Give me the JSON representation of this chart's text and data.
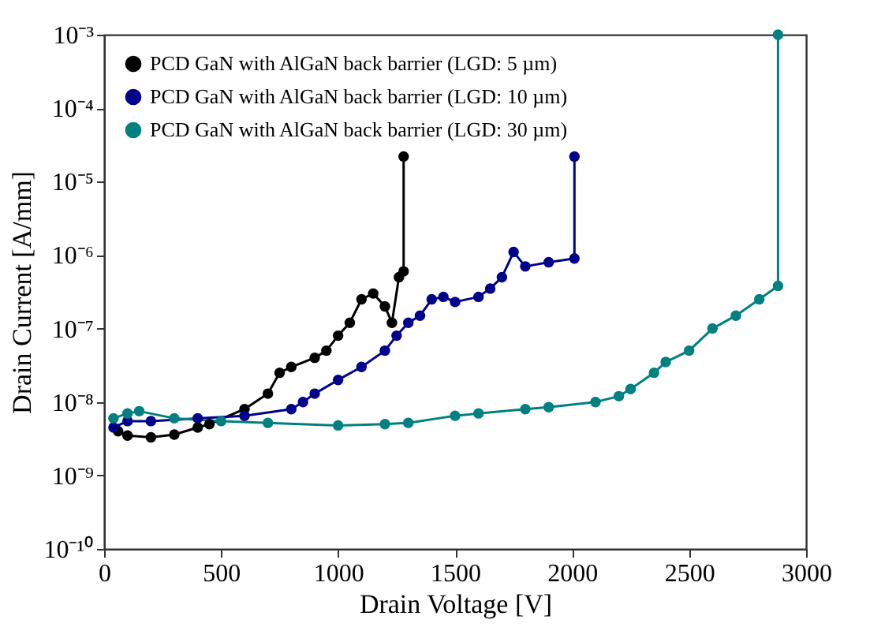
{
  "chart_data": {
    "type": "line",
    "xlabel": "Drain Voltage [V]",
    "ylabel": "Drain Current [A/mm]",
    "xlim": [
      0,
      3000
    ],
    "xticks": [
      0,
      500,
      1000,
      1500,
      2000,
      2500,
      3000
    ],
    "ylim": [
      1e-10,
      0.001
    ],
    "log": "y",
    "yticks": [
      {
        "value": 1e-10,
        "label": "10⁻¹⁰"
      },
      {
        "value": 1e-09,
        "label": "10⁻⁹"
      },
      {
        "value": 1e-08,
        "label": "10⁻⁸"
      },
      {
        "value": 1e-07,
        "label": "10⁻⁷"
      },
      {
        "value": 1e-06,
        "label": "10⁻⁶"
      },
      {
        "value": 1e-05,
        "label": "10⁻⁵"
      },
      {
        "value": 0.0001,
        "label": "10⁻⁴"
      },
      {
        "value": 0.001,
        "label": "10⁻³"
      }
    ],
    "grid": false,
    "legend": "top left",
    "marker": "circle",
    "line_style": "solid",
    "series": [
      {
        "name": "PCD GaN with AlGaN back barrier (LGD: 5 µm)",
        "color": "#000000",
        "x": [
          60,
          100,
          200,
          300,
          400,
          450,
          600,
          700,
          750,
          800,
          900,
          950,
          1000,
          1050,
          1100,
          1150,
          1200,
          1230,
          1260,
          1280,
          1280
        ],
        "values": [
          4e-09,
          3.5e-09,
          3.3e-09,
          3.6e-09,
          4.5e-09,
          5e-09,
          8e-09,
          1.3e-08,
          2.5e-08,
          3e-08,
          4e-08,
          5e-08,
          8e-08,
          1.2e-07,
          2.5e-07,
          3e-07,
          2e-07,
          1.2e-07,
          5e-07,
          6e-07,
          2.2e-05
        ]
      },
      {
        "name": "PCD GaN with AlGaN back barrier (LGD: 10 µm)",
        "color": "#00008b",
        "x": [
          40,
          100,
          200,
          400,
          600,
          800,
          850,
          900,
          1000,
          1100,
          1200,
          1250,
          1300,
          1350,
          1400,
          1450,
          1500,
          1600,
          1650,
          1700,
          1750,
          1800,
          1900,
          2010,
          2010
        ],
        "values": [
          4.5e-09,
          5.5e-09,
          5.5e-09,
          6e-09,
          6.5e-09,
          8e-09,
          1e-08,
          1.3e-08,
          2e-08,
          3e-08,
          5e-08,
          8e-08,
          1.2e-07,
          1.5e-07,
          2.5e-07,
          2.7e-07,
          2.3e-07,
          2.7e-07,
          3.5e-07,
          5e-07,
          1.1e-06,
          7e-07,
          8e-07,
          9e-07,
          2.2e-05
        ]
      },
      {
        "name": "PCD GaN with AlGaN back barrier (LGD: 30 µm)",
        "color": "#008080",
        "x": [
          40,
          100,
          150,
          300,
          500,
          700,
          1000,
          1200,
          1300,
          1500,
          1600,
          1800,
          1900,
          2100,
          2200,
          2250,
          2350,
          2400,
          2500,
          2600,
          2700,
          2800,
          2880,
          2880
        ],
        "values": [
          6e-09,
          7e-09,
          7.5e-09,
          6e-09,
          5.5e-09,
          5.2e-09,
          4.8e-09,
          5e-09,
          5.2e-09,
          6.5e-09,
          7e-09,
          8e-09,
          8.5e-09,
          1e-08,
          1.2e-08,
          1.5e-08,
          2.5e-08,
          3.5e-08,
          5e-08,
          1e-07,
          1.5e-07,
          2.5e-07,
          3.8e-07,
          0.001
        ]
      }
    ]
  }
}
